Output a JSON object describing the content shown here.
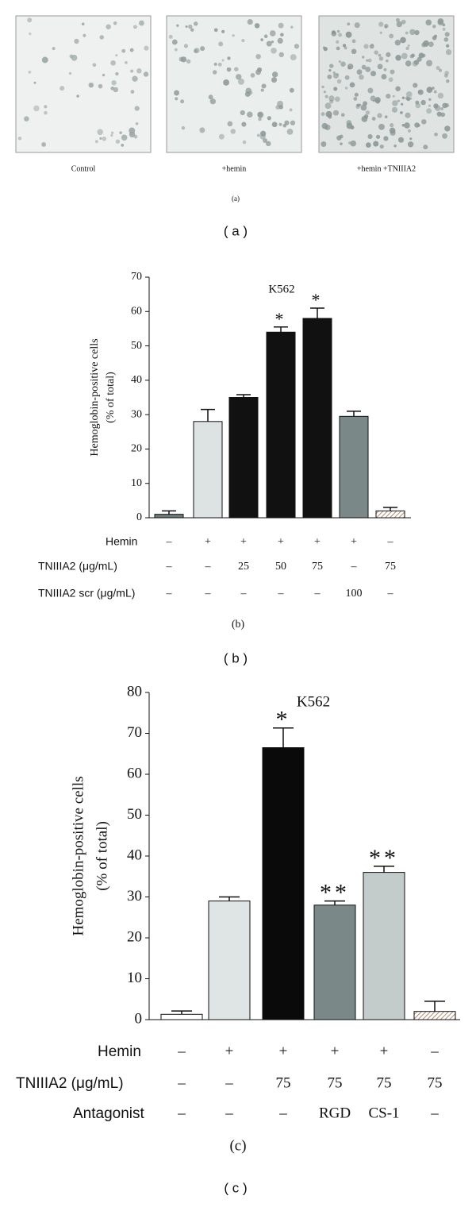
{
  "panel_a": {
    "labels": [
      "Control",
      "+hemin",
      "+hemin +TNIIIA2"
    ],
    "caption": "(a)",
    "panel_label": "( a )"
  },
  "chart_data": [
    {
      "type": "bar",
      "title": "K562",
      "y_label": [
        "Hemoglobin-positive cells",
        "(% of total)"
      ],
      "categories": [
        null,
        null,
        null,
        null,
        null,
        null,
        null
      ],
      "values": [
        1,
        28,
        35,
        54,
        58,
        29.5,
        2
      ],
      "errors": [
        1,
        3.5,
        0.8,
        1.5,
        3,
        1.5,
        1
      ],
      "colors": [
        "#6f7a7a",
        "#dde3e2",
        "#111111",
        "#111111",
        "#111111",
        "#7b8888",
        "#b08a70"
      ],
      "hatched": [
        false,
        false,
        false,
        false,
        false,
        false,
        true
      ],
      "value_annotations": [
        null,
        null,
        null,
        "*",
        "*",
        null,
        null
      ],
      "ylim": [
        0,
        70
      ],
      "yticks": [
        0,
        10,
        20,
        30,
        40,
        50,
        60,
        70
      ],
      "conditions": [
        {
          "label": "Hemin",
          "values": [
            "–",
            "+",
            "+",
            "+",
            "+",
            "+",
            "–"
          ]
        },
        {
          "label": "TNIIIA2 (μg/mL)",
          "values": [
            "–",
            "–",
            "25",
            "50",
            "75",
            "–",
            "75"
          ]
        },
        {
          "label": "TNIIIA2 scr (μg/mL)",
          "values": [
            "–",
            "–",
            "–",
            "–",
            "–",
            "100",
            "–"
          ]
        }
      ],
      "caption": "(b)",
      "panel_label": "( b )"
    },
    {
      "type": "bar",
      "title": "K562",
      "y_label": [
        "Hemoglobin-positive cells",
        "(% of total)"
      ],
      "categories": [
        null,
        null,
        null,
        null,
        null,
        null
      ],
      "values": [
        1.3,
        29,
        66.5,
        28,
        36,
        2
      ],
      "errors": [
        0.8,
        1,
        4.8,
        1,
        1.5,
        2.5
      ],
      "colors": [
        "#ffffff",
        "#dfe5e4",
        "#0a0a0a",
        "#7a8888",
        "#c3cccb",
        "#b08a70"
      ],
      "hatched": [
        false,
        false,
        false,
        false,
        false,
        true
      ],
      "value_annotations": [
        null,
        null,
        "*",
        "**",
        "**",
        null
      ],
      "ylim": [
        0,
        80
      ],
      "yticks": [
        0,
        10,
        20,
        30,
        40,
        50,
        60,
        70,
        80
      ],
      "conditions": [
        {
          "label": "Hemin",
          "values": [
            "–",
            "+",
            "+",
            "+",
            "+",
            "–"
          ]
        },
        {
          "label": "TNIIIA2 (μg/mL)",
          "values": [
            "–",
            "–",
            "75",
            "75",
            "75",
            "75"
          ]
        },
        {
          "label": "Antagonist",
          "values": [
            "–",
            "–",
            "–",
            "RGD",
            "CS-1",
            "–"
          ]
        }
      ],
      "caption": "(c)",
      "panel_label": "( c )"
    }
  ]
}
